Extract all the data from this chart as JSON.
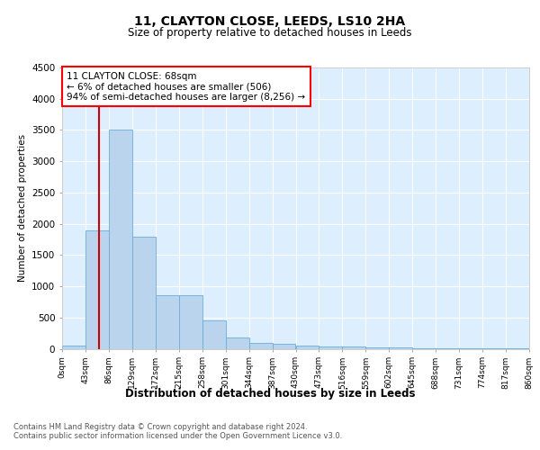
{
  "title1": "11, CLAYTON CLOSE, LEEDS, LS10 2HA",
  "title2": "Size of property relative to detached houses in Leeds",
  "xlabel": "Distribution of detached houses by size in Leeds",
  "ylabel": "Number of detached properties",
  "annotation_line1": "11 CLAYTON CLOSE: 68sqm",
  "annotation_line2": "← 6% of detached houses are smaller (506)",
  "annotation_line3": "94% of semi-detached houses are larger (8,256) →",
  "property_size": 68,
  "bin_edges": [
    0,
    43,
    86,
    129,
    172,
    215,
    258,
    301,
    344,
    387,
    430,
    473,
    516,
    559,
    602,
    645,
    688,
    731,
    774,
    817,
    860
  ],
  "bar_heights": [
    50,
    1900,
    3500,
    1800,
    850,
    850,
    450,
    175,
    100,
    80,
    55,
    40,
    30,
    20,
    15,
    10,
    8,
    5,
    3,
    2
  ],
  "bar_color": "#bad4ed",
  "bar_edge_color": "#6aaed6",
  "vline_color": "#cc0000",
  "vline_x": 68,
  "ylim": [
    0,
    4500
  ],
  "yticks": [
    0,
    500,
    1000,
    1500,
    2000,
    2500,
    3000,
    3500,
    4000,
    4500
  ],
  "plot_bg_color": "#ddeeff",
  "footer1": "Contains HM Land Registry data © Crown copyright and database right 2024.",
  "footer2": "Contains public sector information licensed under the Open Government Licence v3.0."
}
